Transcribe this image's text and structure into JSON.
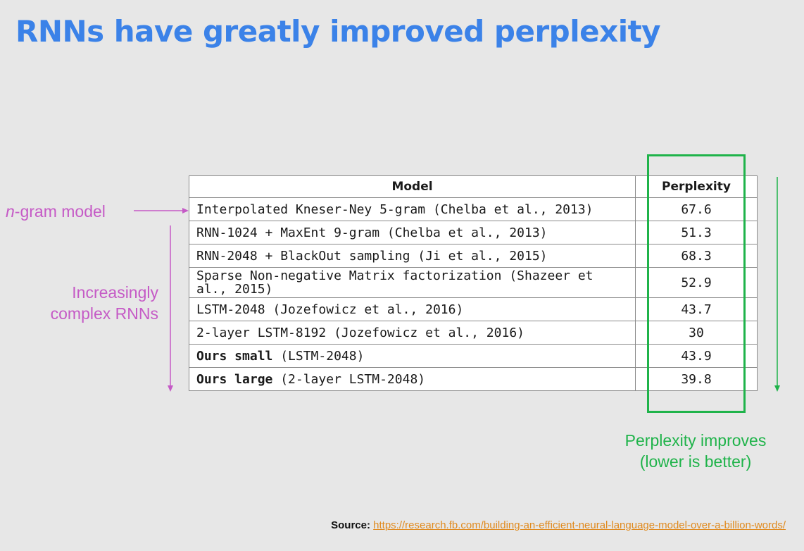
{
  "title": "RNNs have greatly improved perplexity",
  "colors": {
    "title": "#3b82e8",
    "magenta": "#c55ac6",
    "green": "#1fb34a",
    "link": "#e08a1e"
  },
  "table": {
    "headers": [
      "Model",
      "Perplexity"
    ],
    "rows": [
      {
        "model": "Interpolated Kneser-Ney 5-gram (Chelba et al., 2013)",
        "perplexity": "67.6"
      },
      {
        "model": "RNN-1024 + MaxEnt 9-gram (Chelba et al., 2013)",
        "perplexity": "51.3"
      },
      {
        "model": "RNN-2048 + BlackOut sampling (Ji et al., 2015)",
        "perplexity": "68.3"
      },
      {
        "model": "Sparse Non-negative Matrix factorization (Shazeer et al., 2015)",
        "perplexity": "52.9"
      },
      {
        "model": "LSTM-2048 (Jozefowicz et al., 2016)",
        "perplexity": "43.7"
      },
      {
        "model": "2-layer LSTM-8192 (Jozefowicz et al., 2016)",
        "perplexity": "30"
      },
      {
        "model_bold": "Ours small",
        "model_rest": " (LSTM-2048)",
        "perplexity": "43.9"
      },
      {
        "model_bold": "Ours large",
        "model_rest": " (2-layer LSTM-2048)",
        "perplexity": "39.8"
      }
    ]
  },
  "annotations": {
    "ngram_italic": "n",
    "ngram_rest": "-gram model",
    "rnn_line1": "Increasingly",
    "rnn_line2": "complex RNNs",
    "improve_line1": "Perplexity improves",
    "improve_line2": "(lower is better)"
  },
  "source": {
    "label": "Source:",
    "url": "https://research.fb.com/building-an-efficient-neural-language-model-over-a-billion-words/"
  }
}
